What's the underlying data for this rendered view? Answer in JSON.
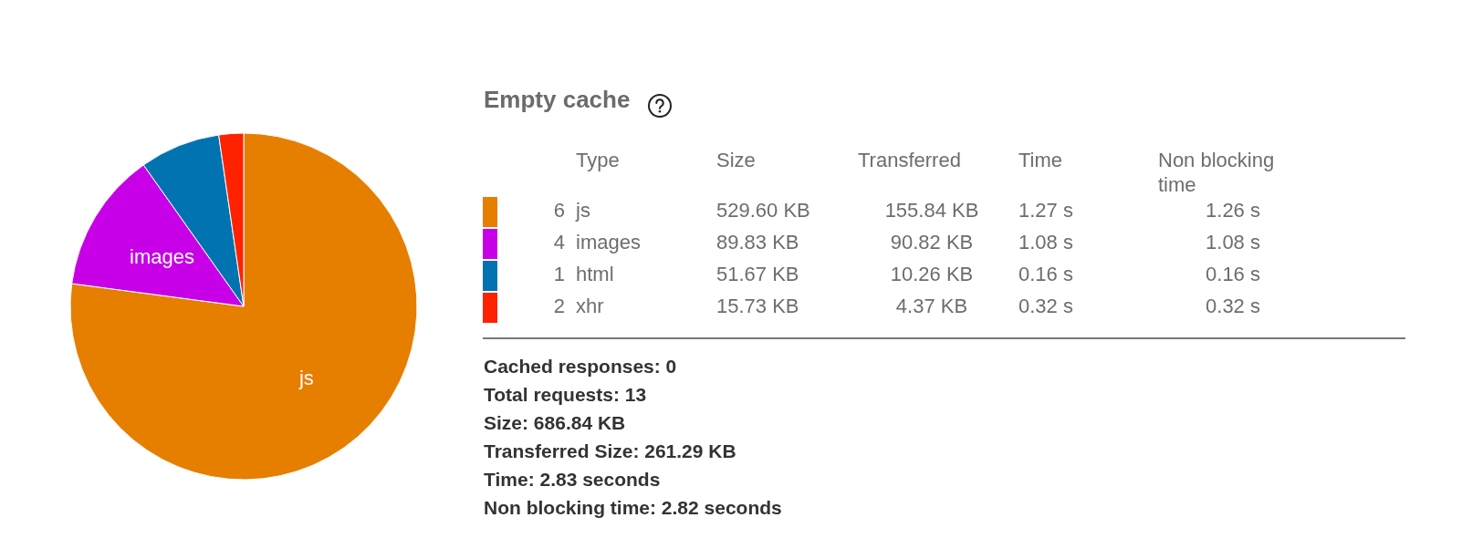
{
  "chart_data": [
    {
      "type": "pie",
      "categories": [
        "js",
        "images",
        null,
        null
      ],
      "values": [
        77.1,
        13.1,
        7.5,
        2.3
      ],
      "colors": [
        "#e67e00",
        "#c800e8",
        "#0073b0",
        "#ff2200"
      ]
    },
    {
      "type": "other",
      "title": "Empty cache",
      "ylabel": "Type",
      "categories": [
        "js",
        "images",
        "html",
        "xhr"
      ],
      "colors": [
        "#e67e00",
        "#c800e8",
        "#0073b0",
        "#ff2200"
      ],
      "series": [
        {
          "values": [
            6,
            4,
            1,
            2
          ],
          "value_labels": [
            "6",
            "4",
            "1",
            "2"
          ]
        },
        {
          "name": "Size",
          "values": [
            529.6,
            89.83,
            51.67,
            15.73
          ],
          "value_labels": [
            "529.60 KB",
            "89.83 KB",
            "51.67 KB",
            "15.73 KB"
          ]
        },
        {
          "name": "Transferred",
          "values": [
            155.84,
            90.82,
            10.26,
            4.37
          ],
          "value_labels": [
            "155.84 KB",
            "90.82 KB",
            "10.26 KB",
            "4.37 KB"
          ]
        },
        {
          "name": "Time",
          "values": [
            1.27,
            1.08,
            0.16,
            0.32
          ],
          "value_labels": [
            "1.27 s",
            "1.08 s",
            "0.16 s",
            "0.32 s"
          ]
        },
        {
          "name": "Non blocking time",
          "values": [
            1.26,
            1.08,
            0.16,
            0.32
          ],
          "value_labels": [
            "1.26 s",
            "1.08 s",
            "0.16 s",
            "0.32 s"
          ]
        }
      ],
      "annotations": [
        "Cached responses: 0",
        "Total requests: 13",
        "Size: 686.84 KB",
        "Transferred Size: 261.29 KB",
        "Time: 2.83 seconds",
        "Non blocking time: 2.82 seconds"
      ]
    }
  ]
}
